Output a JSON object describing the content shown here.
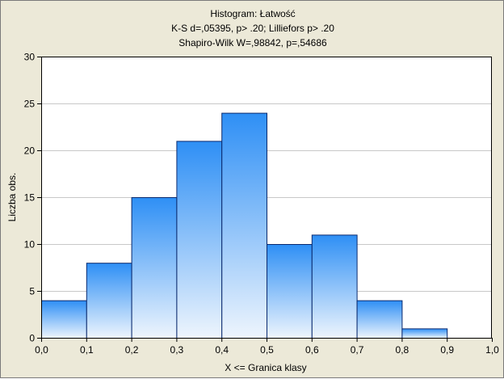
{
  "chart_data": {
    "type": "bar",
    "title": "Histogram: Łatwość",
    "subtitle_lines": [
      "K-S d=,05395, p> .20; Lilliefors p> .20",
      "Shapiro-Wilk W=,98842, p=,54686"
    ],
    "xlabel": "X <= Granica klasy",
    "ylabel": "Liczba obs.",
    "bins": [
      {
        "from": 0.0,
        "to": 0.1,
        "count": 4
      },
      {
        "from": 0.1,
        "to": 0.2,
        "count": 8
      },
      {
        "from": 0.2,
        "to": 0.3,
        "count": 15
      },
      {
        "from": 0.3,
        "to": 0.4,
        "count": 21
      },
      {
        "from": 0.4,
        "to": 0.5,
        "count": 24
      },
      {
        "from": 0.5,
        "to": 0.6,
        "count": 10
      },
      {
        "from": 0.6,
        "to": 0.7,
        "count": 11
      },
      {
        "from": 0.7,
        "to": 0.8,
        "count": 4
      },
      {
        "from": 0.8,
        "to": 0.9,
        "count": 1
      },
      {
        "from": 0.9,
        "to": 1.0,
        "count": 0
      }
    ],
    "xlim": [
      0.0,
      1.0
    ],
    "ylim": [
      0,
      30
    ],
    "x_ticks": [
      "0,0",
      "0,1",
      "0,2",
      "0,3",
      "0,4",
      "0,5",
      "0,6",
      "0,7",
      "0,8",
      "0,9",
      "1,0"
    ],
    "y_ticks": [
      "0",
      "5",
      "10",
      "15",
      "20",
      "25",
      "30"
    ],
    "grid": true,
    "colors": {
      "bar_top": "#2e8ff5",
      "bar_bottom": "#eef5fd",
      "bar_stroke": "#0b2a6e",
      "grid": "#c8c8c8",
      "plot_background": "#ffffff",
      "frame_background": "#ece9d8"
    }
  }
}
